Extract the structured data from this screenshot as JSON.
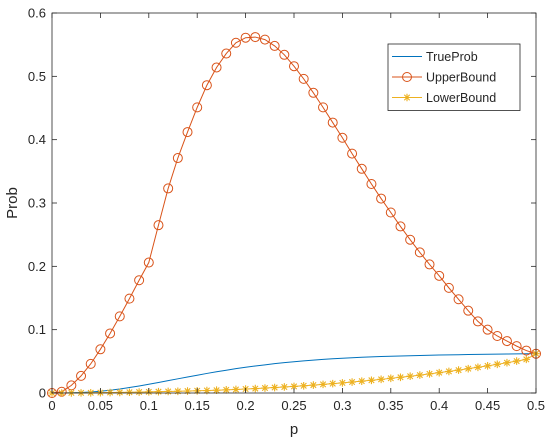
{
  "chart_data": {
    "type": "line",
    "xlabel": "p",
    "ylabel": "Prob",
    "xlim": [
      0,
      0.5
    ],
    "ylim": [
      0,
      0.6
    ],
    "x_ticks": [
      0,
      0.05,
      0.1,
      0.15,
      0.2,
      0.25,
      0.3,
      0.35,
      0.4,
      0.45,
      0.5
    ],
    "x_tick_labels": [
      "0",
      "0.05",
      "0.1",
      "0.15",
      "0.2",
      "0.25",
      "0.3",
      "0.35",
      "0.4",
      "0.45",
      "0.5"
    ],
    "y_ticks": [
      0,
      0.1,
      0.2,
      0.3,
      0.4,
      0.5,
      0.6
    ],
    "y_tick_labels": [
      "0",
      "0.1",
      "0.2",
      "0.3",
      "0.4",
      "0.5",
      "0.6"
    ],
    "grid": false,
    "legend_position": "top-right",
    "x": [
      0,
      0.01,
      0.02,
      0.03,
      0.04,
      0.05,
      0.06,
      0.07,
      0.08,
      0.09,
      0.1,
      0.11,
      0.12,
      0.13,
      0.14,
      0.15,
      0.16,
      0.17,
      0.18,
      0.19,
      0.2,
      0.21,
      0.22,
      0.23,
      0.24,
      0.25,
      0.26,
      0.27,
      0.28,
      0.29,
      0.3,
      0.31,
      0.32,
      0.33,
      0.34,
      0.35,
      0.36,
      0.37,
      0.38,
      0.39,
      0.4,
      0.41,
      0.42,
      0.43,
      0.44,
      0.45,
      0.46,
      0.47,
      0.48,
      0.49,
      0.5
    ],
    "series": [
      {
        "name": "TrueProb",
        "color": "#0072BD",
        "marker": "none",
        "values": [
          0,
          0.0001,
          0.0003,
          0.0008,
          0.0016,
          0.0028,
          0.0044,
          0.0063,
          0.0086,
          0.0111,
          0.0138,
          0.0166,
          0.0195,
          0.0224,
          0.0253,
          0.0281,
          0.0309,
          0.0335,
          0.036,
          0.0384,
          0.0406,
          0.0426,
          0.0445,
          0.0463,
          0.0479,
          0.0494,
          0.0507,
          0.0519,
          0.053,
          0.054,
          0.0549,
          0.0557,
          0.0564,
          0.057,
          0.0576,
          0.0581,
          0.0585,
          0.0589,
          0.0593,
          0.0596,
          0.0599,
          0.0602,
          0.0604,
          0.0607,
          0.0609,
          0.0611,
          0.0613,
          0.0615,
          0.0617,
          0.0619,
          0.0621
        ]
      },
      {
        "name": "UpperBound",
        "color": "#D95319",
        "marker": "circle",
        "values": [
          0,
          0.002,
          0.012,
          0.027,
          0.046,
          0.069,
          0.094,
          0.121,
          0.149,
          0.178,
          0.206,
          0.265,
          0.323,
          0.371,
          0.412,
          0.451,
          0.486,
          0.514,
          0.536,
          0.553,
          0.561,
          0.562,
          0.558,
          0.548,
          0.534,
          0.516,
          0.496,
          0.474,
          0.451,
          0.427,
          0.403,
          0.378,
          0.354,
          0.33,
          0.307,
          0.285,
          0.263,
          0.242,
          0.222,
          0.203,
          0.185,
          0.166,
          0.148,
          0.13,
          0.113,
          0.1,
          0.09,
          0.082,
          0.074,
          0.067,
          0.062
        ]
      },
      {
        "name": "LowerBound",
        "color": "#EDB120",
        "marker": "asterisk",
        "values": [
          0,
          0,
          0.0001,
          0.0002,
          0.0003,
          0.0005,
          0.0007,
          0.0009,
          0.0012,
          0.0015,
          0.0018,
          0.0021,
          0.0024,
          0.0027,
          0.0031,
          0.0035,
          0.0039,
          0.0044,
          0.005,
          0.0056,
          0.0063,
          0.007,
          0.0078,
          0.0086,
          0.0095,
          0.0104,
          0.0114,
          0.0125,
          0.0136,
          0.0148,
          0.016,
          0.0173,
          0.0187,
          0.0201,
          0.0216,
          0.0232,
          0.0248,
          0.0265,
          0.0283,
          0.0302,
          0.0321,
          0.0341,
          0.0362,
          0.0384,
          0.0406,
          0.0429,
          0.0453,
          0.0478,
          0.0504,
          0.0531,
          0.0621
        ]
      }
    ]
  }
}
